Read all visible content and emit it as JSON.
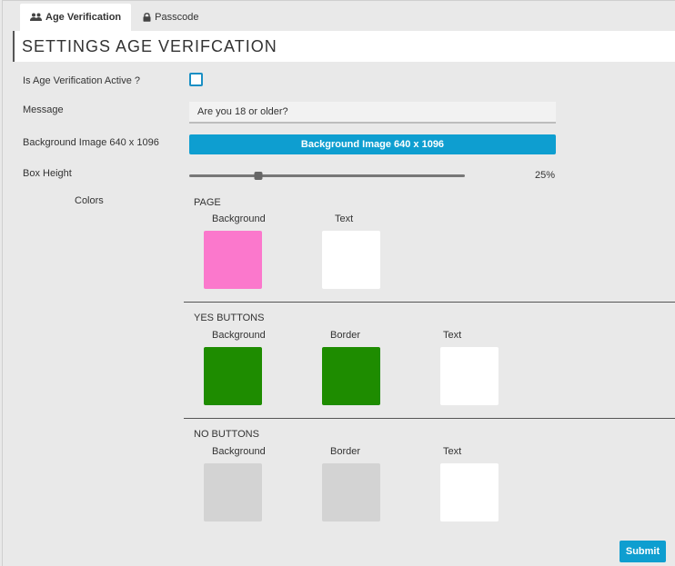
{
  "tabs": [
    {
      "label": "Age Verification",
      "icon": "users-icon",
      "active": true
    },
    {
      "label": "Passcode",
      "icon": "lock-icon",
      "active": false
    }
  ],
  "header": {
    "title": "SETTINGS AGE VERIFCATION"
  },
  "form": {
    "active_label": "Is Age Verification Active ?",
    "active_checked": false,
    "message_label": "Message",
    "message_value": "Are you 18 or older?",
    "bg_image_label": "Background Image 640 x 1096",
    "bg_image_button": "Background Image 640 x 1096",
    "box_height_label": "Box Height",
    "box_height_value": "25%",
    "box_height_fraction": 0.25,
    "colors_label": "Colors"
  },
  "colors": {
    "page": {
      "title": "PAGE",
      "swatches": [
        {
          "label": "Background",
          "color": "#fb78cc"
        },
        {
          "label": "Text",
          "color": "#ffffff"
        }
      ]
    },
    "yes_buttons": {
      "title": "YES BUTTONS",
      "swatches": [
        {
          "label": "Background",
          "color": "#1e8c00"
        },
        {
          "label": "Border",
          "color": "#1e8c00"
        },
        {
          "label": "Text",
          "color": "#ffffff"
        }
      ]
    },
    "no_buttons": {
      "title": "NO BUTTONS",
      "swatches": [
        {
          "label": "Background",
          "color": "#d3d3d3"
        },
        {
          "label": "Border",
          "color": "#d3d3d3"
        },
        {
          "label": "Text",
          "color": "#ffffff"
        }
      ]
    }
  },
  "submit_label": "Submit"
}
